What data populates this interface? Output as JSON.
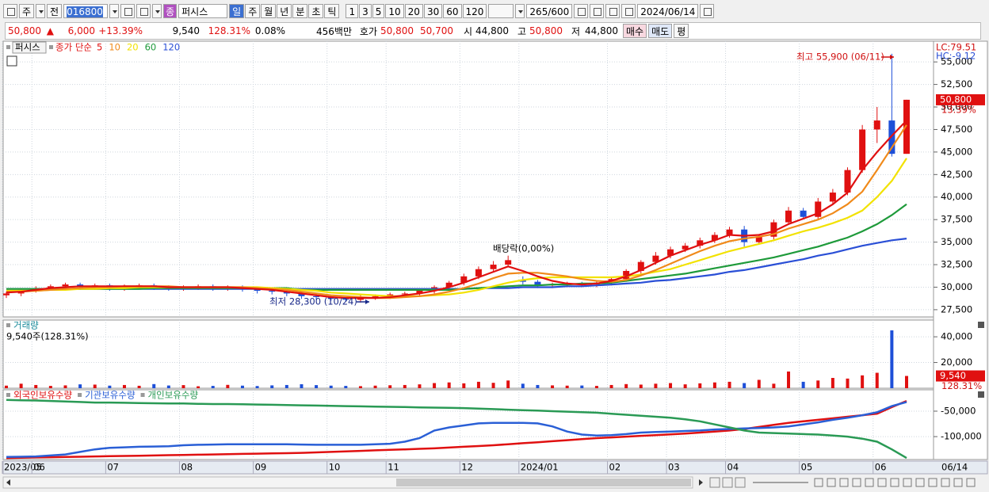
{
  "toolbar": {
    "period_type": "주",
    "prefix": "전",
    "code": "016800",
    "badge": "종",
    "name": "퍼시스",
    "intervals": [
      "일",
      "주",
      "월",
      "년",
      "분",
      "초",
      "틱"
    ],
    "numbers": [
      1,
      3,
      5,
      10,
      20,
      30,
      60,
      120
    ],
    "count": 265,
    "max": "/600",
    "date": "2024/06/14"
  },
  "quote": {
    "price": "50,800",
    "arrow": "▲",
    "change": "6,000",
    "change_rate": "+13.39%",
    "volume": "9,540",
    "volume_rate": "128.31%",
    "turnover": "0.08%",
    "amount": "456백만",
    "ask_label": "호가",
    "ask": "50,800",
    "bid": "50,700",
    "open_label": "시",
    "open": "44,800",
    "high_label": "고",
    "high": "50,800",
    "low_label": "저",
    "low": "44,800",
    "buy": "매수",
    "sell": "매도",
    "avg": "평"
  },
  "chart_data": [
    {
      "type": "candlestick",
      "title": "퍼시스",
      "ma_label": "종가 단순",
      "up_color": "#e01010",
      "down_color": "#1d4fd8",
      "categories": [
        "2023/05",
        null,
        "06",
        null,
        null,
        null,
        null,
        "07",
        null,
        null,
        null,
        null,
        "08",
        null,
        null,
        null,
        null,
        "09",
        null,
        null,
        null,
        null,
        "10",
        null,
        null,
        null,
        "11",
        null,
        null,
        null,
        null,
        "12",
        null,
        null,
        null,
        "2024/01",
        null,
        null,
        null,
        null,
        null,
        "02",
        null,
        null,
        null,
        "03",
        null,
        null,
        null,
        "04",
        null,
        null,
        null,
        null,
        "05",
        null,
        null,
        null,
        null,
        "06",
        null,
        null
      ],
      "x_end_label": "06/14",
      "open": [
        29100,
        29300,
        29700,
        29900,
        30100,
        30300,
        30000,
        30200,
        29900,
        30100,
        30200,
        30000,
        29900,
        30000,
        30100,
        29900,
        30000,
        29800,
        29600,
        29500,
        29300,
        29000,
        28900,
        28700,
        28600,
        28900,
        29000,
        29200,
        29300,
        29600,
        30000,
        30500,
        31200,
        32000,
        32500,
        30800,
        30600,
        30200,
        30300,
        30400,
        30300,
        30500,
        30900,
        31800,
        32800,
        33500,
        34200,
        34600,
        35200,
        35800,
        36400,
        35000,
        35600,
        37200,
        38500,
        37800,
        39500,
        40500,
        43000,
        47500,
        48500,
        44800
      ],
      "high": [
        29500,
        29900,
        30100,
        30300,
        30500,
        30500,
        30400,
        30400,
        30300,
        30400,
        30400,
        30200,
        30200,
        30300,
        30300,
        30200,
        30200,
        30000,
        29800,
        29700,
        29500,
        29200,
        29100,
        28900,
        29100,
        29200,
        29400,
        29500,
        29800,
        30200,
        30700,
        31500,
        32300,
        32900,
        33500,
        31200,
        30800,
        30500,
        30600,
        30600,
        30700,
        31100,
        32000,
        33000,
        33900,
        34500,
        34900,
        35500,
        36100,
        36700,
        36800,
        35900,
        37500,
        38900,
        38800,
        39900,
        40900,
        43300,
        48000,
        50000,
        55900,
        50800
      ],
      "low": [
        28800,
        29000,
        29400,
        29600,
        29800,
        29700,
        29700,
        29600,
        29600,
        29800,
        29700,
        29600,
        29600,
        29700,
        29600,
        29600,
        29500,
        29300,
        29200,
        29000,
        28700,
        28600,
        28500,
        28400,
        28300,
        28600,
        28700,
        28900,
        29000,
        29300,
        29700,
        30200,
        30900,
        31700,
        32200,
        30300,
        29900,
        29900,
        30000,
        30000,
        30000,
        30200,
        30600,
        31500,
        32500,
        33200,
        33900,
        34300,
        34900,
        35500,
        34500,
        34700,
        35300,
        36900,
        37500,
        37500,
        39200,
        40200,
        42700,
        46000,
        44500,
        44800
      ],
      "close": [
        29300,
        29700,
        29900,
        30100,
        30300,
        30000,
        30200,
        29900,
        30100,
        30200,
        30000,
        29900,
        30000,
        30100,
        29900,
        30000,
        29800,
        29600,
        29500,
        29300,
        29000,
        28900,
        28700,
        28600,
        28900,
        29000,
        29200,
        29300,
        29600,
        30000,
        30500,
        31200,
        32000,
        32500,
        33000,
        30600,
        30200,
        30300,
        30400,
        30300,
        30500,
        30900,
        31800,
        32800,
        33500,
        34200,
        34600,
        35200,
        35800,
        36400,
        35000,
        35600,
        37200,
        38500,
        37800,
        39500,
        40500,
        43000,
        47500,
        48500,
        44800,
        50800
      ],
      "series": [
        {
          "name": "5",
          "color": "#e01010",
          "values": [
            29400,
            29500,
            29700,
            29900,
            30000,
            30100,
            30100,
            30100,
            30100,
            30100,
            30100,
            30000,
            30000,
            30000,
            30000,
            30000,
            29900,
            29800,
            29700,
            29500,
            29300,
            29100,
            28900,
            28800,
            28800,
            28800,
            28900,
            29100,
            29300,
            29600,
            30000,
            30500,
            31100,
            31700,
            32300,
            31800,
            31200,
            30700,
            30400,
            30300,
            30400,
            30700,
            31200,
            31900,
            32700,
            33500,
            34100,
            34700,
            35200,
            35800,
            35700,
            35800,
            36200,
            37000,
            37600,
            38200,
            39200,
            40500,
            43000,
            45000,
            46800,
            48500
          ]
        },
        {
          "name": "10",
          "color": "#f08a1a",
          "values": [
            29500,
            29500,
            29600,
            29700,
            29800,
            29900,
            30000,
            30000,
            30100,
            30100,
            30100,
            30100,
            30000,
            30000,
            30000,
            30000,
            30000,
            29900,
            29800,
            29700,
            29500,
            29300,
            29100,
            29000,
            28900,
            28800,
            28800,
            28900,
            29000,
            29200,
            29500,
            29900,
            30400,
            31000,
            31500,
            31600,
            31600,
            31400,
            31200,
            30900,
            30700,
            30600,
            30800,
            31300,
            31900,
            32600,
            33300,
            34000,
            34600,
            35100,
            35400,
            35600,
            35900,
            36500,
            37000,
            37500,
            38200,
            39200,
            40600,
            43000,
            45500,
            48000
          ]
        },
        {
          "name": "20",
          "color": "#f2e200",
          "values": [
            29600,
            29600,
            29600,
            29700,
            29700,
            29800,
            29800,
            29900,
            29900,
            30000,
            30000,
            30000,
            30000,
            30000,
            30000,
            30000,
            30000,
            30000,
            29900,
            29800,
            29700,
            29600,
            29400,
            29300,
            29200,
            29100,
            29000,
            29000,
            29000,
            29100,
            29200,
            29400,
            29700,
            30100,
            30500,
            30800,
            31000,
            31100,
            31100,
            31100,
            31100,
            31100,
            31200,
            31400,
            31700,
            32000,
            32500,
            33000,
            33500,
            34000,
            34400,
            34800,
            35200,
            35700,
            36200,
            36600,
            37100,
            37700,
            38500,
            40000,
            41800,
            44300
          ]
        },
        {
          "name": "60",
          "color": "#1e9a3a",
          "values": [
            29800,
            29800,
            29800,
            29800,
            29800,
            29800,
            29800,
            29800,
            29800,
            29800,
            29900,
            29900,
            29900,
            29900,
            29900,
            29900,
            29900,
            29900,
            29900,
            29900,
            29700,
            29700,
            29700,
            29700,
            29700,
            29700,
            29700,
            29700,
            29700,
            29700,
            29700,
            29800,
            29900,
            30000,
            30100,
            30200,
            30200,
            30300,
            30300,
            30400,
            30400,
            30500,
            30700,
            30900,
            31100,
            31300,
            31500,
            31800,
            32100,
            32400,
            32700,
            33000,
            33300,
            33700,
            34100,
            34500,
            35000,
            35500,
            36200,
            37000,
            38000,
            39200
          ]
        },
        {
          "name": "120",
          "color": "#2a4fd6",
          "values": [
            29800,
            29800,
            29800,
            29800,
            29800,
            29800,
            29800,
            29800,
            29800,
            29800,
            29800,
            29800,
            29800,
            29800,
            29800,
            29800,
            29800,
            29800,
            29800,
            29800,
            29800,
            29800,
            29800,
            29800,
            29800,
            29800,
            29800,
            29800,
            29800,
            29800,
            29800,
            29800,
            29900,
            29900,
            29900,
            30000,
            30000,
            30000,
            30100,
            30100,
            30200,
            30300,
            30400,
            30500,
            30700,
            30800,
            31000,
            31200,
            31400,
            31700,
            31900,
            32200,
            32500,
            32800,
            33100,
            33500,
            33800,
            34200,
            34600,
            34900,
            35200,
            35400
          ]
        }
      ],
      "ylim": [
        26700,
        57300
      ],
      "yticks": [
        {
          "value": 27500,
          "label": "27,500"
        },
        {
          "value": 30000,
          "label": "30,000"
        },
        {
          "value": 32500,
          "label": "32,500"
        },
        {
          "value": 35000,
          "label": "35,000"
        },
        {
          "value": 37500,
          "label": "37,500"
        },
        {
          "value": 40000,
          "label": "40,000"
        },
        {
          "value": 42500,
          "label": "42,500"
        },
        {
          "value": 45000,
          "label": "45,000"
        },
        {
          "value": 47500,
          "label": "47,500"
        },
        {
          "value": 50000,
          "label": "50,000"
        },
        {
          "value": 52500,
          "label": "52,500"
        },
        {
          "value": 55000,
          "label": "55,000"
        }
      ],
      "max_label": "최고 55,900 (06/11)",
      "min_label": "최저 28,300 (10/24)",
      "dividend_label": "배당락(0,00%)",
      "lc_label": "LC:79.51",
      "hc_label": "HC:-9.12",
      "last_label": "50,800",
      "change_label": "13.39%"
    },
    {
      "type": "bar",
      "title": "거래량",
      "subtitle": "9,540주(128.31%)",
      "values": [
        2000,
        3500,
        2500,
        1800,
        2200,
        3000,
        2800,
        2000,
        2500,
        1900,
        3200,
        2100,
        2400,
        1500,
        1800,
        2600,
        2000,
        1700,
        2200,
        2500,
        3100,
        2400,
        2000,
        1800,
        1600,
        2000,
        2300,
        2500,
        3000,
        4000,
        4500,
        3800,
        5000,
        4200,
        6000,
        3500,
        2500,
        2200,
        2000,
        2100,
        1800,
        2500,
        3200,
        2800,
        3500,
        4000,
        3000,
        3800,
        4500,
        5000,
        4000,
        6500,
        3500,
        13000,
        5000,
        6000,
        8000,
        7500,
        10000,
        12000,
        45000,
        9540
      ],
      "ylim": [
        0,
        53000
      ],
      "yticks": [
        {
          "value": 20000,
          "label": "20,000"
        },
        {
          "value": 40000,
          "label": "40,000"
        }
      ],
      "last_label": "9,540",
      "change_label": "128.31%"
    },
    {
      "type": "line",
      "series": [
        {
          "name": "외국인보유수량",
          "color": "#e01010",
          "values": [
            -142000,
            -141500,
            -141000,
            -140500,
            -140000,
            -139500,
            -139000,
            -138500,
            -138000,
            -137500,
            -137000,
            -136500,
            -136000,
            -135500,
            -135000,
            -134500,
            -134000,
            -133500,
            -133000,
            -132500,
            -132000,
            -131000,
            -130000,
            -129000,
            -128000,
            -127000,
            -126000,
            -125000,
            -124000,
            -123000,
            -121500,
            -120000,
            -118500,
            -117000,
            -115000,
            -113000,
            -111000,
            -109000,
            -107000,
            -105000,
            -103000,
            -101500,
            -100000,
            -98500,
            -97000,
            -95500,
            -94000,
            -92000,
            -90000,
            -88000,
            -85000,
            -81000,
            -77000,
            -73000,
            -70000,
            -67000,
            -64000,
            -61000,
            -58000,
            -55000,
            -42000,
            -30000
          ]
        },
        {
          "name": "기관보유수량",
          "color": "#2a5fd6",
          "values": [
            -140000,
            -139500,
            -139000,
            -137000,
            -135000,
            -130000,
            -125000,
            -122000,
            -121000,
            -120000,
            -119500,
            -119000,
            -117000,
            -116000,
            -115500,
            -115000,
            -115000,
            -115000,
            -115000,
            -115000,
            -115500,
            -116000,
            -116000,
            -116000,
            -116000,
            -115000,
            -114000,
            -110000,
            -103000,
            -88000,
            -82000,
            -78000,
            -74000,
            -73000,
            -73000,
            -73000,
            -74000,
            -80000,
            -90000,
            -96000,
            -98000,
            -97000,
            -95000,
            -92000,
            -91000,
            -90000,
            -89000,
            -88000,
            -86000,
            -85000,
            -84000,
            -83000,
            -82000,
            -80000,
            -76000,
            -72000,
            -67000,
            -63000,
            -58000,
            -52000,
            -40000,
            -32000
          ]
        },
        {
          "name": "개인보유수량",
          "color": "#2a9a55",
          "values": [
            -28000,
            -28500,
            -29000,
            -30000,
            -31000,
            -32000,
            -33000,
            -33000,
            -33500,
            -34000,
            -34500,
            -35000,
            -35000,
            -35500,
            -36000,
            -36000,
            -36500,
            -37000,
            -37500,
            -38000,
            -38500,
            -39000,
            -39500,
            -40000,
            -40500,
            -41000,
            -41500,
            -42000,
            -42500,
            -43000,
            -43500,
            -44000,
            -45000,
            -46000,
            -47000,
            -48000,
            -49000,
            -50000,
            -51000,
            -52000,
            -53000,
            -55000,
            -57000,
            -59000,
            -61000,
            -63000,
            -66000,
            -70000,
            -76000,
            -82000,
            -88000,
            -92000,
            -93000,
            -94000,
            -95000,
            -96000,
            -98000,
            -100000,
            -104000,
            -110000,
            -125000,
            -142000
          ]
        }
      ],
      "ylim": [
        -145000,
        -8000
      ],
      "yticks": [
        {
          "value": -50000,
          "label": "-50,000"
        },
        {
          "value": -100000,
          "label": "-100,000"
        }
      ]
    }
  ]
}
